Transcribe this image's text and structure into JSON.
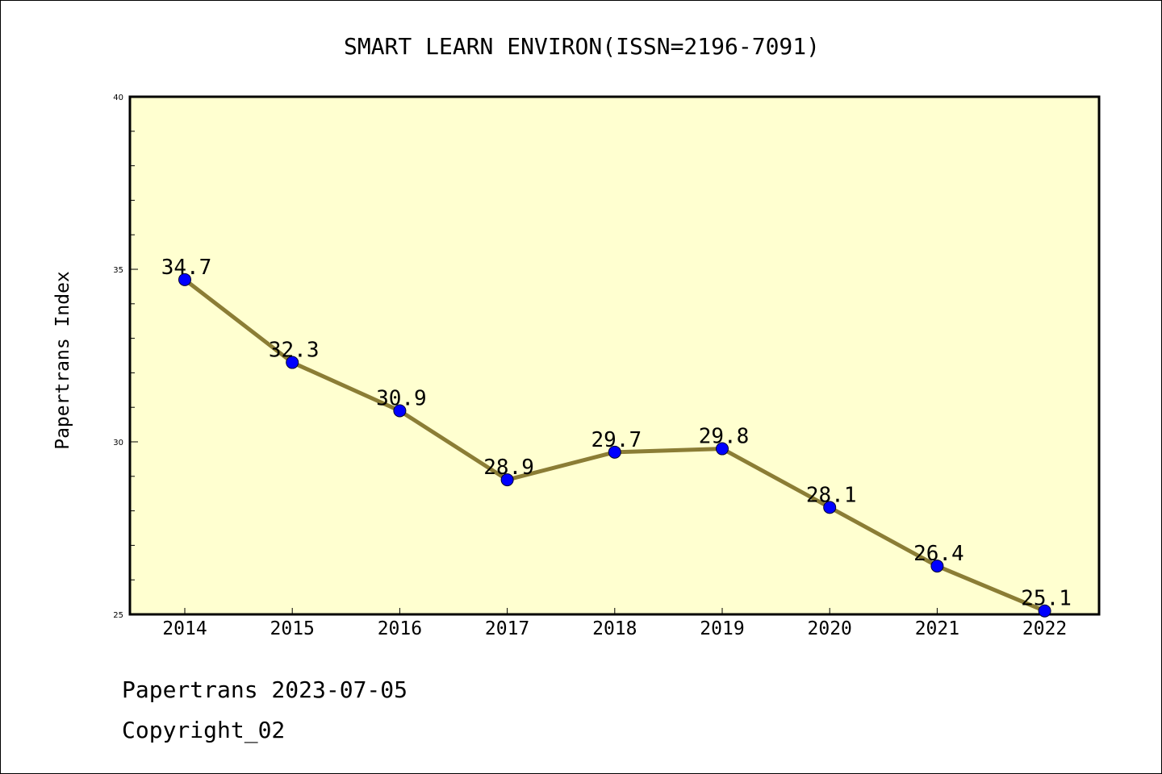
{
  "chart_data": {
    "type": "line",
    "title": "SMART LEARN ENVIRON(ISSN=2196-7091)",
    "xlabel": "",
    "ylabel": "Papertrans Index",
    "categories": [
      "2014",
      "2015",
      "2016",
      "2017",
      "2018",
      "2019",
      "2020",
      "2021",
      "2022"
    ],
    "values": [
      34.7,
      32.3,
      30.9,
      28.9,
      29.7,
      29.8,
      28.1,
      26.4,
      25.1
    ],
    "data_labels": [
      "34.7",
      "32.3",
      "30.9",
      "28.9",
      "29.7",
      "29.8",
      "28.1",
      "26.4",
      "25.1"
    ],
    "ylim": [
      25,
      40
    ],
    "yticks": [
      "25",
      "30",
      "35",
      "40"
    ],
    "grid": false,
    "legend": "none",
    "colors": {
      "plot_background": "#ffffd0",
      "line": "#8b7d35",
      "marker": "#0000ff"
    }
  },
  "footer": {
    "line1": "Papertrans 2023-07-05",
    "line2": "Copyright_02"
  }
}
